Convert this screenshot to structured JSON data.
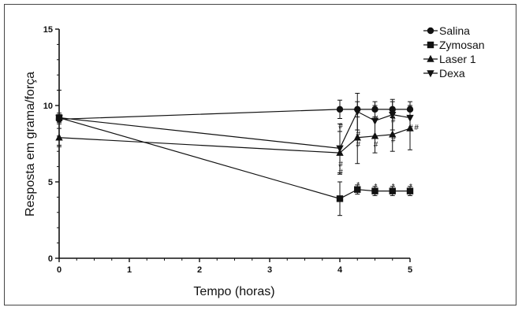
{
  "chart_data": {
    "type": "line",
    "title": "",
    "xlabel": "Tempo (horas)",
    "ylabel": "Resposta em grama/força",
    "xlim": [
      0,
      5
    ],
    "ylim": [
      0,
      15
    ],
    "xticks": [
      "0",
      "1",
      "2",
      "3",
      "4",
      "5"
    ],
    "yticks": [
      "0",
      "5",
      "10",
      "15"
    ],
    "grid": false,
    "legend_position": "top-right",
    "series": [
      {
        "name": "Salina",
        "marker": "circle",
        "x": [
          0,
          4,
          4.25,
          4.5,
          4.75,
          5
        ],
        "y": [
          9.1,
          9.75,
          9.75,
          9.75,
          9.75,
          9.75
        ],
        "err": [
          0.3,
          0.6,
          0.5,
          0.5,
          0.5,
          0.5
        ]
      },
      {
        "name": "Zymosan",
        "marker": "square",
        "x": [
          0,
          4,
          4.25,
          4.5,
          4.75,
          5
        ],
        "y": [
          9.2,
          3.9,
          4.5,
          4.4,
          4.4,
          4.4
        ],
        "err": [
          0.3,
          1.1,
          0.3,
          0.3,
          0.3,
          0.3
        ]
      },
      {
        "name": "Laser 1",
        "marker": "triangle-up",
        "x": [
          0,
          4,
          4.25,
          4.5,
          4.75,
          5
        ],
        "y": [
          7.9,
          6.9,
          7.9,
          8.0,
          8.1,
          8.5
        ],
        "err": [
          0.6,
          1.4,
          1.7,
          1.1,
          1.1,
          1.4
        ]
      },
      {
        "name": "Dexa",
        "marker": "triangle-down",
        "x": [
          0,
          4,
          4.25,
          4.5,
          4.75,
          5
        ],
        "y": [
          9.2,
          7.2,
          9.6,
          9.0,
          9.4,
          9.2
        ],
        "err": [
          1.8,
          1.6,
          1.2,
          1.0,
          1.0,
          0.8
        ]
      }
    ],
    "annotations": [
      {
        "x": 4,
        "y": 8.7,
        "text": "#"
      },
      {
        "x": 4,
        "y": 6.2,
        "text": "#"
      },
      {
        "x": 4,
        "y": 5.7,
        "text": "#"
      },
      {
        "x": 4.25,
        "y": 8.2,
        "text": "#"
      },
      {
        "x": 4.25,
        "y": 7.5,
        "text": "#"
      },
      {
        "x": 4.5,
        "y": 9.2,
        "text": "#"
      },
      {
        "x": 4.5,
        "y": 7.5,
        "text": "#"
      },
      {
        "x": 4.75,
        "y": 9.1,
        "text": "#"
      },
      {
        "x": 4.75,
        "y": 7.8,
        "text": "#"
      },
      {
        "x": 5,
        "y": 8.6,
        "text": "#"
      },
      {
        "x": 5.08,
        "y": 8.6,
        "text": "#"
      },
      {
        "x": 4.25,
        "y": 4.85,
        "text": "*"
      },
      {
        "x": 4.5,
        "y": 4.75,
        "text": "*"
      },
      {
        "x": 4.75,
        "y": 4.75,
        "text": "*"
      },
      {
        "x": 5,
        "y": 4.75,
        "text": "*"
      }
    ]
  }
}
